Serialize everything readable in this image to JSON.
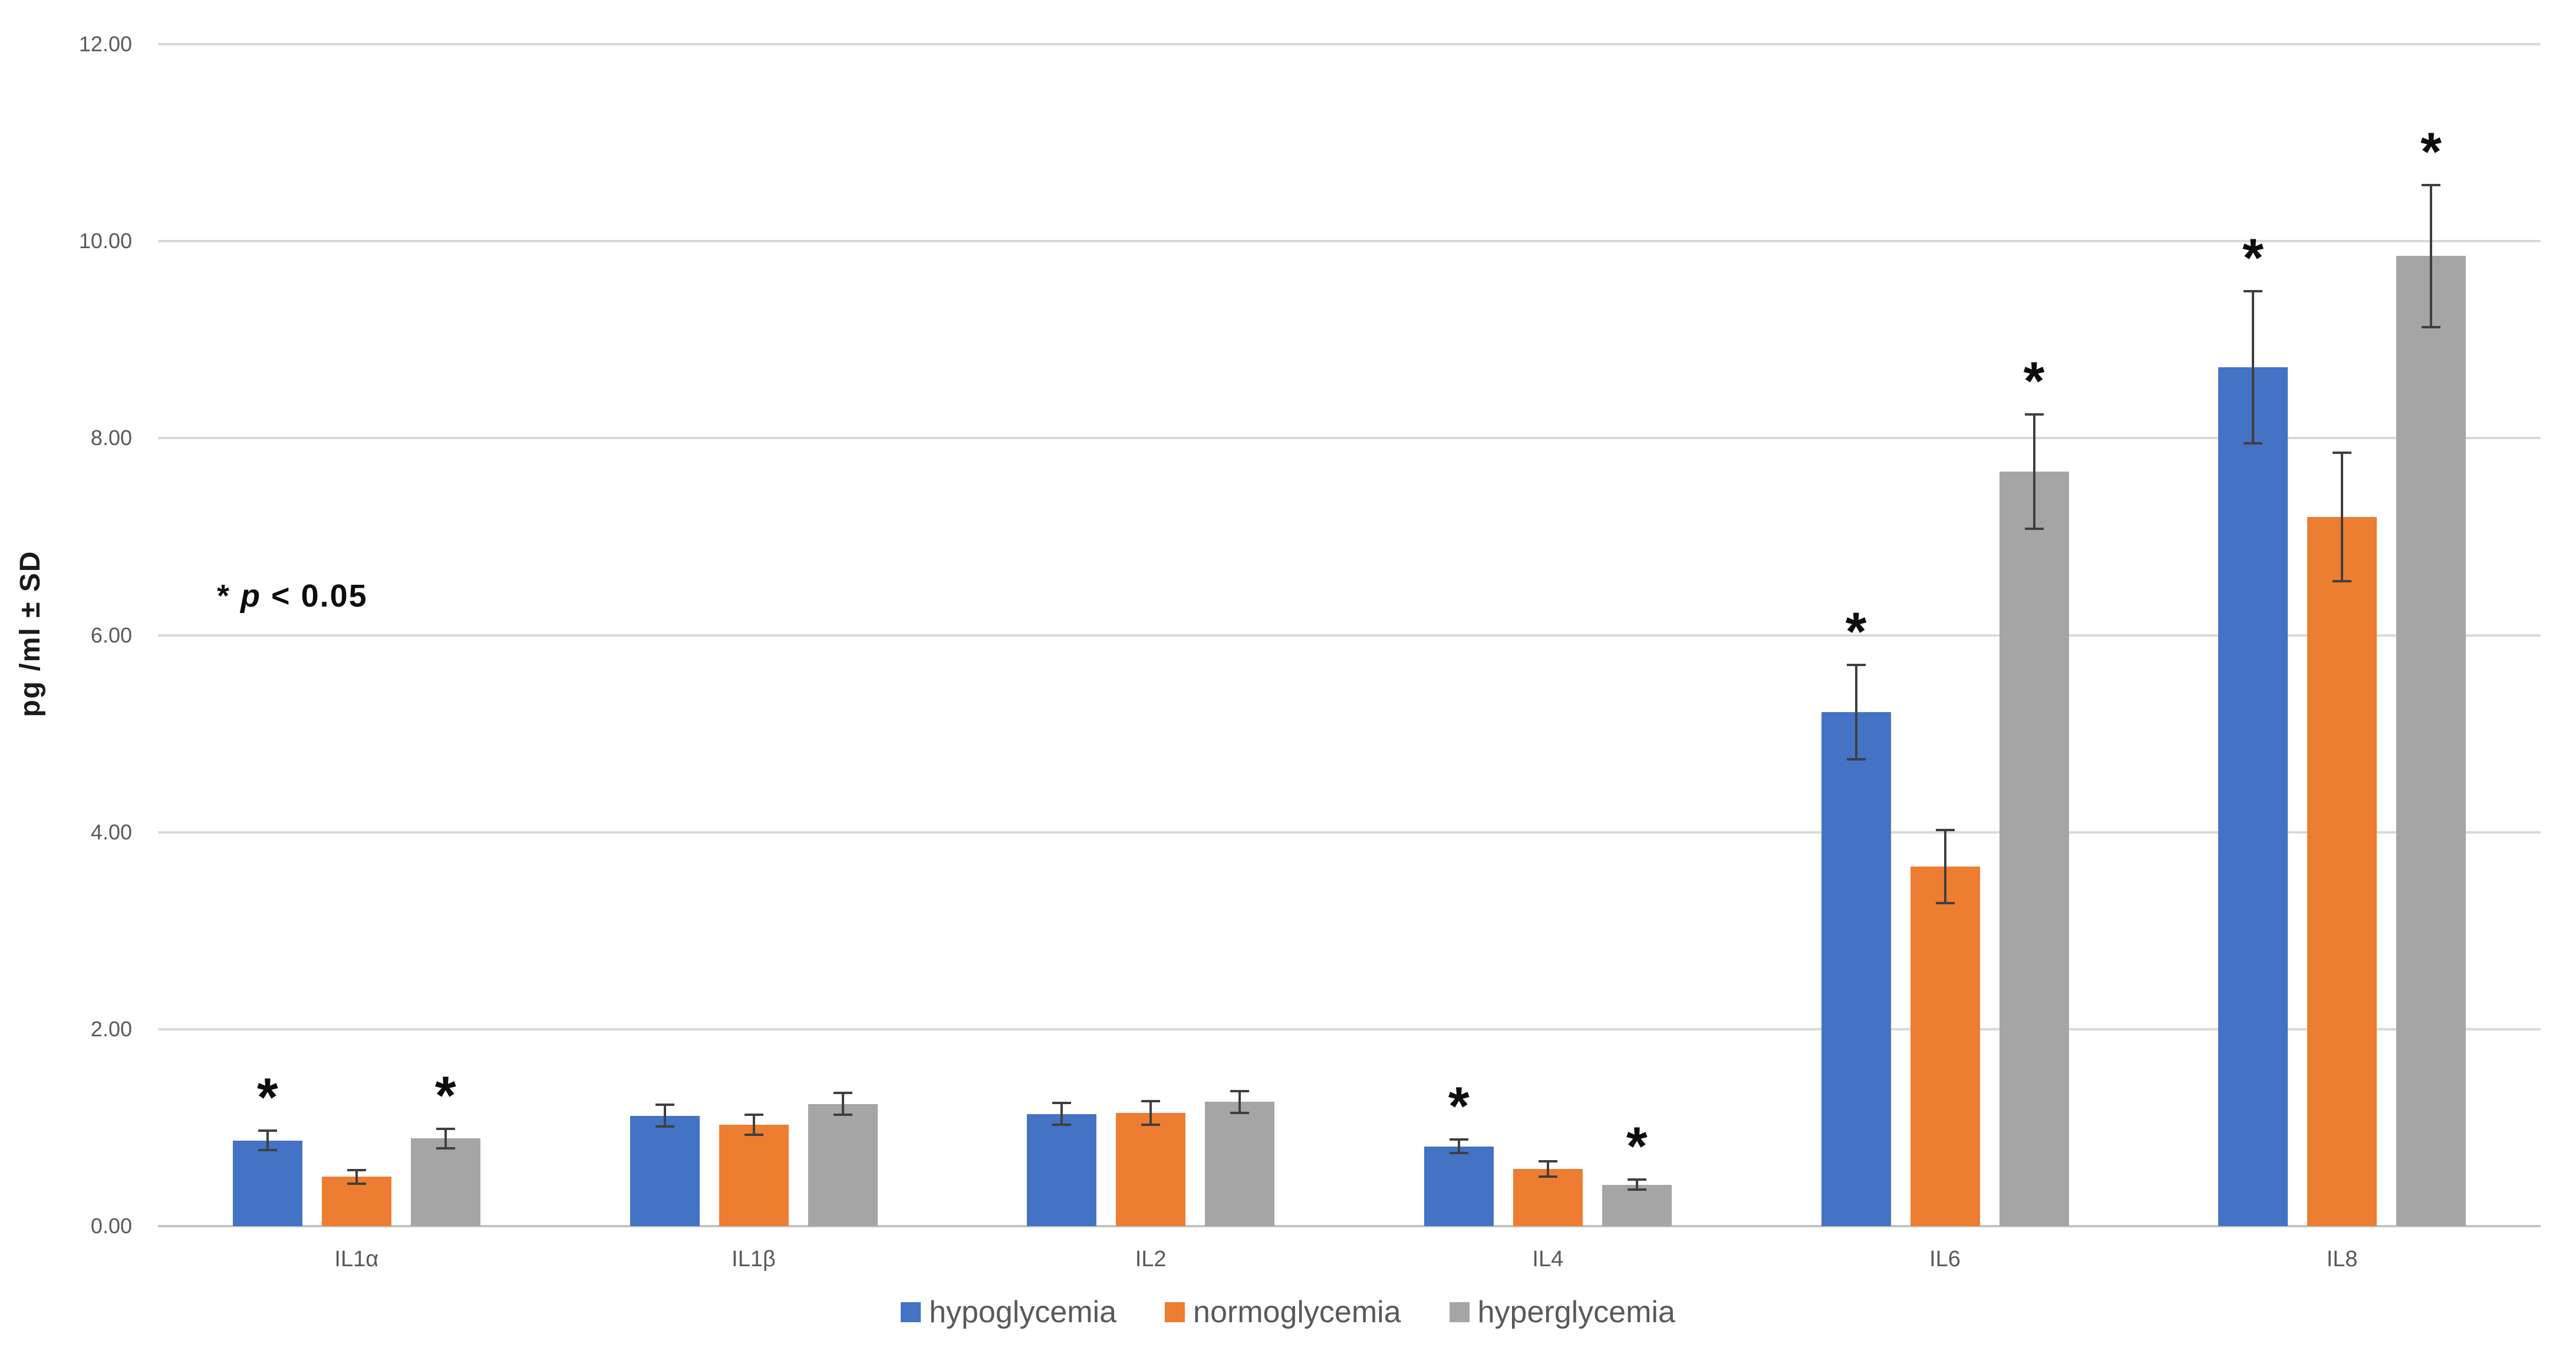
{
  "chart_data": {
    "type": "bar",
    "title": "",
    "categories": [
      "IL1α",
      "IL1β",
      "IL2",
      "IL4",
      "IL6",
      "IL8"
    ],
    "series": [
      {
        "name": "hypoglycemia",
        "color": "#4472C4",
        "values": [
          0.87,
          1.12,
          1.14,
          0.81,
          5.22,
          8.72
        ],
        "sd": [
          0.1,
          0.11,
          0.11,
          0.07,
          0.48,
          0.77
        ],
        "significant": [
          true,
          false,
          false,
          true,
          true,
          true
        ]
      },
      {
        "name": "normoglycemia",
        "color": "#ED7D31",
        "values": [
          0.5,
          1.03,
          1.15,
          0.58,
          3.65,
          7.2
        ],
        "sd": [
          0.07,
          0.1,
          0.12,
          0.08,
          0.37,
          0.65
        ],
        "significant": [
          false,
          false,
          false,
          false,
          false,
          false
        ]
      },
      {
        "name": "hyperglycemia",
        "color": "#A5A5A5",
        "values": [
          0.89,
          1.24,
          1.26,
          0.42,
          7.66,
          9.85
        ],
        "sd": [
          0.1,
          0.11,
          0.11,
          0.05,
          0.58,
          0.72
        ],
        "significant": [
          true,
          false,
          false,
          true,
          true,
          true
        ]
      }
    ],
    "xlabel": "",
    "ylabel": "pg /ml ± SD",
    "ylim": [
      0,
      12
    ],
    "ytick_values": [
      0,
      2,
      4,
      6,
      8,
      10,
      12
    ],
    "ytick_labels": [
      "0.00",
      "2.00",
      "4.00",
      "6.00",
      "8.00",
      "10.00",
      "12.00"
    ],
    "grid": true,
    "legend_position": "bottom",
    "significance_marker": "*",
    "annotation": {
      "marker": "*",
      "text_italic": "p",
      "text_rest": " < 0.05"
    }
  },
  "colors": {
    "background": "#FFFFFF",
    "gridline": "#D9D9D9",
    "axis_line": "#C3C3C3",
    "error_bar": "#3F3F3F",
    "tick_text": "#595959",
    "legend_text": "#595959",
    "annotation_text": "#0D0D0D"
  }
}
